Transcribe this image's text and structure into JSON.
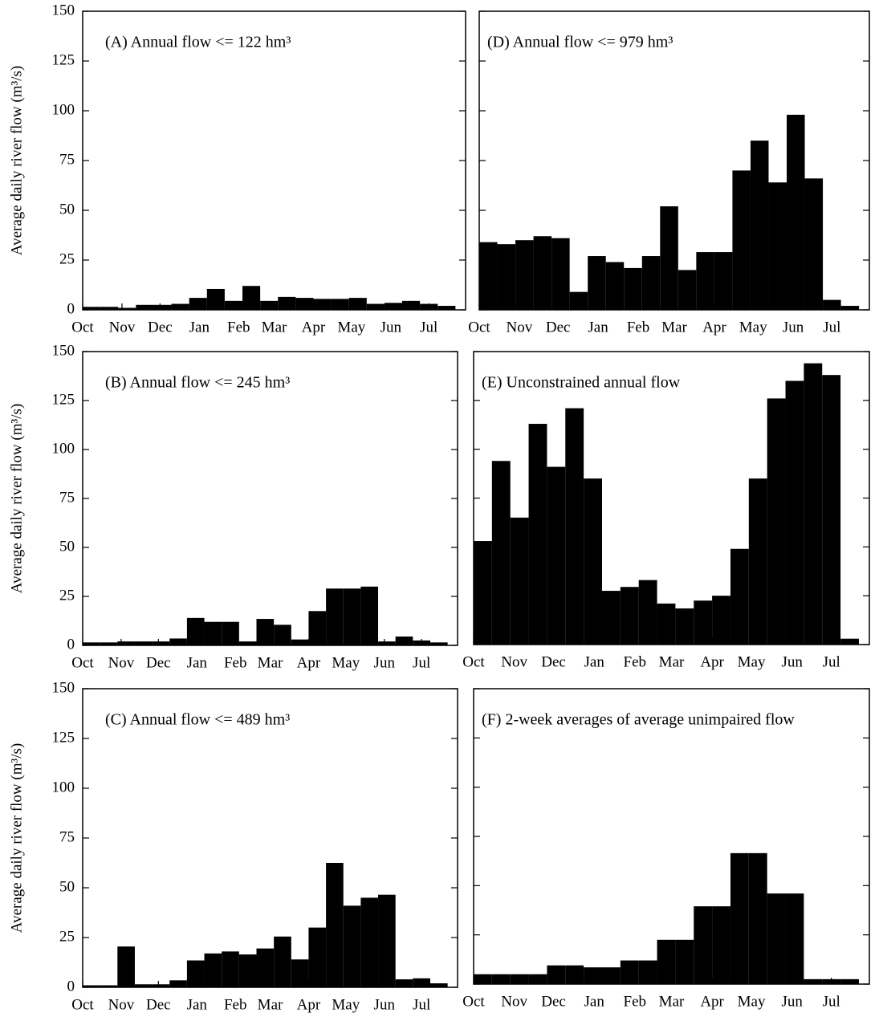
{
  "chart_data": [
    {
      "type": "histogram",
      "annotation": "(A) Annual flow <= 122 hm³",
      "ylabel": "Average daily river flow (m³/s)",
      "color": "#000000",
      "bins": [
        0,
        14,
        28,
        42,
        56,
        70,
        84,
        98,
        112,
        126,
        140,
        154,
        168,
        182,
        196,
        210,
        224,
        238,
        252,
        266,
        280,
        294
      ],
      "values": [
        1.5,
        1.5,
        1,
        2.5,
        2.5,
        3,
        6,
        10.5,
        4.5,
        12,
        4.5,
        6.5,
        6,
        5.5,
        5.5,
        6,
        3,
        3.5,
        4.5,
        3,
        2
      ],
      "xlim": [
        0,
        302
      ],
      "xticks": [
        {
          "value": 0,
          "label": "Oct"
        },
        {
          "value": 31,
          "label": "Nov"
        },
        {
          "value": 61,
          "label": "Dec"
        },
        {
          "value": 92,
          "label": "Jan"
        },
        {
          "value": 123,
          "label": "Feb"
        },
        {
          "value": 151,
          "label": "Mar"
        },
        {
          "value": 182,
          "label": "Apr"
        },
        {
          "value": 212,
          "label": "May"
        },
        {
          "value": 243,
          "label": "Jun"
        },
        {
          "value": 273,
          "label": "Jul"
        }
      ],
      "ylim": [
        0,
        150
      ],
      "yticks": [
        0,
        25,
        50,
        75,
        100,
        125,
        150
      ],
      "ytick_labels": true
    },
    {
      "type": "histogram",
      "annotation": "(D) Annual flow <= 979 hm³",
      "color": "#000000",
      "bins": [
        0,
        14,
        28,
        42,
        56,
        70,
        84,
        98,
        112,
        126,
        140,
        154,
        168,
        182,
        196,
        210,
        224,
        238,
        252,
        266,
        280,
        294
      ],
      "values": [
        34,
        33,
        35,
        37,
        36,
        9,
        27,
        24,
        21,
        27,
        52,
        20,
        29,
        29,
        70,
        85,
        64,
        98,
        66,
        5,
        2
      ],
      "xlim": [
        0,
        302
      ],
      "xticks": [
        {
          "value": 0,
          "label": "Oct"
        },
        {
          "value": 31,
          "label": "Nov"
        },
        {
          "value": 61,
          "label": "Dec"
        },
        {
          "value": 92,
          "label": "Jan"
        },
        {
          "value": 123,
          "label": "Feb"
        },
        {
          "value": 151,
          "label": "Mar"
        },
        {
          "value": 182,
          "label": "Apr"
        },
        {
          "value": 212,
          "label": "May"
        },
        {
          "value": 243,
          "label": "Jun"
        },
        {
          "value": 273,
          "label": "Jul"
        }
      ],
      "ylim": [
        0,
        150
      ],
      "yticks": [
        0,
        25,
        50,
        75,
        100,
        125,
        150
      ],
      "ytick_labels": false
    },
    {
      "type": "histogram",
      "annotation": "(B) Annual flow <= 245 hm³",
      "ylabel": "Average daily river flow (m³/s)",
      "color": "#000000",
      "bins": [
        0,
        14,
        28,
        42,
        56,
        70,
        84,
        98,
        112,
        126,
        140,
        154,
        168,
        182,
        196,
        210,
        224,
        238,
        252,
        266,
        280,
        294
      ],
      "values": [
        1.5,
        1.5,
        2,
        2,
        2,
        3.5,
        14,
        12,
        12,
        2,
        13.5,
        10.5,
        3,
        17.5,
        29,
        29,
        30,
        2,
        4.5,
        2.5,
        1.5
      ],
      "xlim": [
        0,
        302
      ],
      "xticks": [
        {
          "value": 0,
          "label": "Oct"
        },
        {
          "value": 31,
          "label": "Nov"
        },
        {
          "value": 61,
          "label": "Dec"
        },
        {
          "value": 92,
          "label": "Jan"
        },
        {
          "value": 123,
          "label": "Feb"
        },
        {
          "value": 151,
          "label": "Mar"
        },
        {
          "value": 182,
          "label": "Apr"
        },
        {
          "value": 212,
          "label": "May"
        },
        {
          "value": 243,
          "label": "Jun"
        },
        {
          "value": 273,
          "label": "Jul"
        }
      ],
      "ylim": [
        0,
        150
      ],
      "yticks": [
        0,
        25,
        50,
        75,
        100,
        125,
        150
      ],
      "ytick_labels": true
    },
    {
      "type": "histogram",
      "annotation": "(E) Unconstrained annual flow",
      "color": "#000000",
      "bins": [
        0,
        14,
        28,
        42,
        56,
        70,
        84,
        98,
        112,
        126,
        140,
        154,
        168,
        182,
        196,
        210,
        224,
        238,
        252,
        266,
        280,
        294
      ],
      "values": [
        53,
        94,
        65,
        113,
        91,
        121,
        85,
        27.5,
        29.5,
        33,
        21,
        18.5,
        22.5,
        25,
        49,
        85,
        126,
        135,
        144,
        138,
        3
      ],
      "xlim": [
        0,
        302
      ],
      "xticks": [
        {
          "value": 0,
          "label": "Oct"
        },
        {
          "value": 31,
          "label": "Nov"
        },
        {
          "value": 61,
          "label": "Dec"
        },
        {
          "value": 92,
          "label": "Jan"
        },
        {
          "value": 123,
          "label": "Feb"
        },
        {
          "value": 151,
          "label": "Mar"
        },
        {
          "value": 182,
          "label": "Apr"
        },
        {
          "value": 212,
          "label": "May"
        },
        {
          "value": 243,
          "label": "Jun"
        },
        {
          "value": 273,
          "label": "Jul"
        }
      ],
      "ylim": [
        0,
        150
      ],
      "yticks": [
        0,
        25,
        50,
        75,
        100,
        125,
        150
      ],
      "ytick_labels": false
    },
    {
      "type": "histogram",
      "annotation": "(C) Annual flow <= 489 hm³",
      "ylabel": "Average daily river flow (m³/s)",
      "color": "#000000",
      "bins": [
        0,
        14,
        28,
        42,
        56,
        70,
        84,
        98,
        112,
        126,
        140,
        154,
        168,
        182,
        196,
        210,
        224,
        238,
        252,
        266,
        280,
        294
      ],
      "values": [
        1,
        1,
        20.5,
        1.5,
        1.5,
        3.5,
        13.5,
        17,
        18,
        16.5,
        19.5,
        25.5,
        14,
        30,
        62.5,
        41,
        45,
        46.5,
        4,
        4.5,
        2
      ],
      "xlim": [
        0,
        302
      ],
      "xticks": [
        {
          "value": 0,
          "label": "Oct"
        },
        {
          "value": 31,
          "label": "Nov"
        },
        {
          "value": 61,
          "label": "Dec"
        },
        {
          "value": 92,
          "label": "Jan"
        },
        {
          "value": 123,
          "label": "Feb"
        },
        {
          "value": 151,
          "label": "Mar"
        },
        {
          "value": 182,
          "label": "Apr"
        },
        {
          "value": 212,
          "label": "May"
        },
        {
          "value": 243,
          "label": "Jun"
        },
        {
          "value": 273,
          "label": "Jul"
        }
      ],
      "ylim": [
        0,
        150
      ],
      "yticks": [
        0,
        25,
        50,
        75,
        100,
        125,
        150
      ],
      "ytick_labels": true
    },
    {
      "type": "histogram",
      "annotation": "(F) 2-week averages of average unimpaired flow",
      "color": "#000000",
      "bins": [
        0,
        14,
        28,
        42,
        56,
        70,
        84,
        98,
        112,
        126,
        140,
        154,
        168,
        182,
        196,
        210,
        224,
        238,
        252,
        266,
        280,
        294
      ],
      "values": [
        5,
        5,
        5,
        5,
        9.5,
        9.5,
        8.5,
        8.5,
        12,
        12,
        22.5,
        22.5,
        39.5,
        39.5,
        66.5,
        66.5,
        46,
        46,
        2.5,
        2.5,
        2.5
      ],
      "xlim": [
        0,
        302
      ],
      "xticks": [
        {
          "value": 0,
          "label": "Oct"
        },
        {
          "value": 31,
          "label": "Nov"
        },
        {
          "value": 61,
          "label": "Dec"
        },
        {
          "value": 92,
          "label": "Jan"
        },
        {
          "value": 123,
          "label": "Feb"
        },
        {
          "value": 151,
          "label": "Mar"
        },
        {
          "value": 182,
          "label": "Apr"
        },
        {
          "value": 212,
          "label": "May"
        },
        {
          "value": 243,
          "label": "Jun"
        },
        {
          "value": 273,
          "label": "Jul"
        }
      ],
      "ylim": [
        0,
        150
      ],
      "yticks": [
        0,
        25,
        50,
        75,
        100,
        125,
        150
      ],
      "ytick_labels": false
    }
  ]
}
